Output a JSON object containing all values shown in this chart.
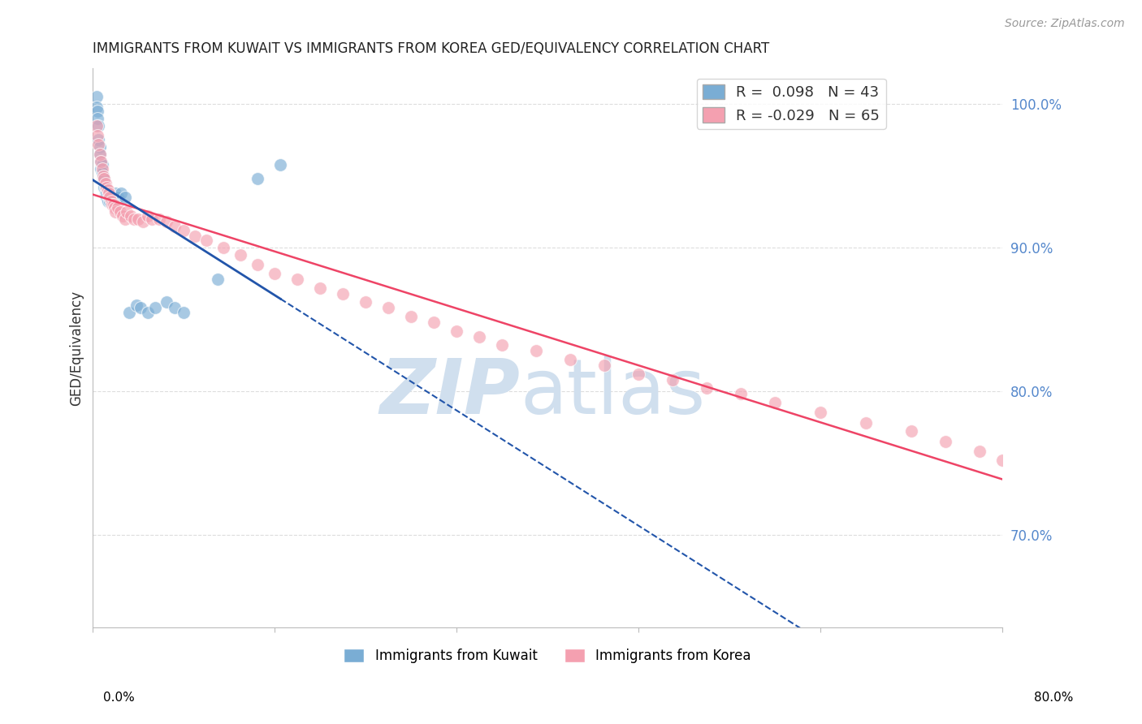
{
  "title": "IMMIGRANTS FROM KUWAIT VS IMMIGRANTS FROM KOREA GED/EQUIVALENCY CORRELATION CHART",
  "source": "Source: ZipAtlas.com",
  "ylabel": "GED/Equivalency",
  "x_min": 0.0,
  "x_max": 0.8,
  "y_min": 0.635,
  "y_max": 1.025,
  "right_yticks": [
    1.0,
    0.9,
    0.8,
    0.7
  ],
  "right_yticklabels": [
    "100.0%",
    "90.0%",
    "80.0%",
    "70.0%"
  ],
  "kuwait_R": 0.098,
  "kuwait_N": 43,
  "korea_R": -0.029,
  "korea_N": 65,
  "kuwait_color": "#7AADD4",
  "korea_color": "#F4A0B0",
  "kuwait_line_color": "#2255AA",
  "korea_line_color": "#EE4466",
  "kuwait_scatter_x": [
    0.003,
    0.003,
    0.004,
    0.004,
    0.005,
    0.005,
    0.006,
    0.006,
    0.007,
    0.007,
    0.008,
    0.008,
    0.009,
    0.009,
    0.01,
    0.01,
    0.011,
    0.011,
    0.012,
    0.012,
    0.013,
    0.013,
    0.014,
    0.015,
    0.015,
    0.016,
    0.017,
    0.018,
    0.02,
    0.022,
    0.025,
    0.028,
    0.032,
    0.038,
    0.042,
    0.048,
    0.055,
    0.065,
    0.072,
    0.08,
    0.11,
    0.145,
    0.165
  ],
  "kuwait_scatter_y": [
    1.005,
    0.998,
    0.995,
    0.99,
    0.985,
    0.975,
    0.97,
    0.965,
    0.96,
    0.955,
    0.958,
    0.952,
    0.95,
    0.948,
    0.948,
    0.942,
    0.942,
    0.938,
    0.938,
    0.935,
    0.935,
    0.932,
    0.935,
    0.935,
    0.932,
    0.935,
    0.935,
    0.935,
    0.938,
    0.935,
    0.938,
    0.935,
    0.855,
    0.86,
    0.858,
    0.855,
    0.858,
    0.862,
    0.858,
    0.855,
    0.878,
    0.948,
    0.958
  ],
  "korea_scatter_x": [
    0.003,
    0.004,
    0.005,
    0.006,
    0.007,
    0.008,
    0.009,
    0.01,
    0.011,
    0.012,
    0.013,
    0.014,
    0.015,
    0.016,
    0.017,
    0.018,
    0.019,
    0.02,
    0.022,
    0.024,
    0.026,
    0.028,
    0.03,
    0.033,
    0.036,
    0.04,
    0.044,
    0.048,
    0.052,
    0.058,
    0.065,
    0.072,
    0.08,
    0.09,
    0.1,
    0.115,
    0.13,
    0.145,
    0.16,
    0.18,
    0.2,
    0.22,
    0.24,
    0.26,
    0.28,
    0.3,
    0.32,
    0.34,
    0.36,
    0.39,
    0.42,
    0.45,
    0.48,
    0.51,
    0.54,
    0.57,
    0.6,
    0.64,
    0.68,
    0.72,
    0.75,
    0.78,
    0.8,
    0.81,
    0.82
  ],
  "korea_scatter_y": [
    0.985,
    0.978,
    0.972,
    0.965,
    0.96,
    0.955,
    0.95,
    0.948,
    0.945,
    0.942,
    0.94,
    0.938,
    0.935,
    0.932,
    0.93,
    0.93,
    0.928,
    0.925,
    0.928,
    0.925,
    0.922,
    0.92,
    0.925,
    0.922,
    0.92,
    0.92,
    0.918,
    0.922,
    0.92,
    0.92,
    0.918,
    0.915,
    0.912,
    0.908,
    0.905,
    0.9,
    0.895,
    0.888,
    0.882,
    0.878,
    0.872,
    0.868,
    0.862,
    0.858,
    0.852,
    0.848,
    0.842,
    0.838,
    0.832,
    0.828,
    0.822,
    0.818,
    0.812,
    0.808,
    0.802,
    0.798,
    0.792,
    0.785,
    0.778,
    0.772,
    0.765,
    0.758,
    0.752,
    0.745,
    0.738
  ],
  "watermark_color": "#D0DFEE",
  "grid_color": "#DDDDDD",
  "background_color": "#FFFFFF"
}
